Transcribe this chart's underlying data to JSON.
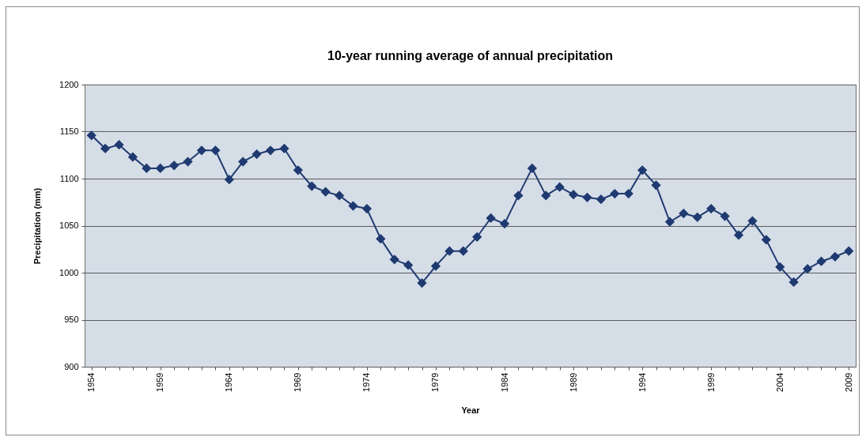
{
  "chart_data": {
    "type": "line",
    "title": "10-year running average of annual precipitation",
    "xlabel": "Year",
    "ylabel": "Precipitation (mm)",
    "x": [
      1954,
      1955,
      1956,
      1957,
      1958,
      1959,
      1960,
      1961,
      1962,
      1963,
      1964,
      1965,
      1966,
      1967,
      1968,
      1969,
      1970,
      1971,
      1972,
      1973,
      1974,
      1975,
      1976,
      1977,
      1978,
      1979,
      1980,
      1981,
      1982,
      1983,
      1984,
      1985,
      1986,
      1987,
      1988,
      1989,
      1990,
      1991,
      1992,
      1993,
      1994,
      1995,
      1996,
      1997,
      1998,
      1999,
      2000,
      2001,
      2002,
      2003,
      2004,
      2005,
      2006,
      2007,
      2008,
      2009
    ],
    "values": [
      1146,
      1132,
      1136,
      1123,
      1111,
      1111,
      1114,
      1118,
      1130,
      1130,
      1099,
      1118,
      1126,
      1130,
      1132,
      1109,
      1092,
      1086,
      1082,
      1071,
      1068,
      1036,
      1014,
      1008,
      989,
      1007,
      1023,
      1023,
      1038,
      1058,
      1052,
      1082,
      1111,
      1082,
      1091,
      1083,
      1080,
      1078,
      1084,
      1084,
      1109,
      1093,
      1054,
      1063,
      1059,
      1068,
      1060,
      1040,
      1055,
      1035,
      1006,
      990,
      1004,
      1012,
      1017,
      1023
    ],
    "color": "#1f3a70",
    "marker": "diamond",
    "grid": "y",
    "xlim": [
      1953.5,
      2009.5
    ],
    "xticks": [
      1954,
      {
        "value": 1955,
        "label": null
      },
      {
        "value": 1956,
        "label": null
      },
      {
        "value": 1957,
        "label": null
      },
      {
        "value": 1958,
        "label": null
      },
      1959,
      {
        "value": 1960,
        "label": null
      },
      {
        "value": 1961,
        "label": null
      },
      {
        "value": 1962,
        "label": null
      },
      {
        "value": 1963,
        "label": null
      },
      1964,
      {
        "value": 1965,
        "label": null
      },
      {
        "value": 1966,
        "label": null
      },
      {
        "value": 1967,
        "label": null
      },
      {
        "value": 1968,
        "label": null
      },
      1969,
      {
        "value": 1970,
        "label": null
      },
      {
        "value": 1971,
        "label": null
      },
      {
        "value": 1972,
        "label": null
      },
      {
        "value": 1973,
        "label": null
      },
      1974,
      {
        "value": 1975,
        "label": null
      },
      {
        "value": 1976,
        "label": null
      },
      {
        "value": 1977,
        "label": null
      },
      {
        "value": 1978,
        "label": null
      },
      1979,
      {
        "value": 1980,
        "label": null
      },
      {
        "value": 1981,
        "label": null
      },
      {
        "value": 1982,
        "label": null
      },
      {
        "value": 1983,
        "label": null
      },
      1984,
      {
        "value": 1985,
        "label": null
      },
      {
        "value": 1986,
        "label": null
      },
      {
        "value": 1987,
        "label": null
      },
      {
        "value": 1988,
        "label": null
      },
      1989,
      {
        "value": 1990,
        "label": null
      },
      {
        "value": 1991,
        "label": null
      },
      {
        "value": 1992,
        "label": null
      },
      {
        "value": 1993,
        "label": null
      },
      1994,
      {
        "value": 1995,
        "label": null
      },
      {
        "value": 1996,
        "label": null
      },
      {
        "value": 1997,
        "label": null
      },
      {
        "value": 1998,
        "label": null
      },
      1999,
      {
        "value": 2000,
        "label": null
      },
      {
        "value": 2001,
        "label": null
      },
      {
        "value": 2002,
        "label": null
      },
      {
        "value": 2003,
        "label": null
      },
      2004,
      {
        "value": 2005,
        "label": null
      },
      {
        "value": 2006,
        "label": null
      },
      {
        "value": 2007,
        "label": null
      },
      {
        "value": 2008,
        "label": null
      },
      2009
    ],
    "ylim": [
      900,
      1200
    ],
    "yticks": [
      900,
      950,
      1000,
      1050,
      1100,
      1150,
      1200
    ]
  }
}
